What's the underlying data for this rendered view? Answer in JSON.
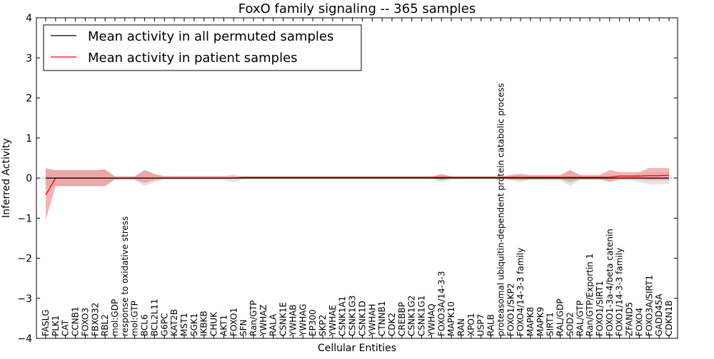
{
  "chart_data": {
    "type": "line",
    "title": "FoxO family signaling -- 365 samples",
    "xlabel": "Cellular Entities",
    "ylabel": "Inferred Activity",
    "ylim": [
      -4,
      4
    ],
    "yticks": [
      -4,
      -3,
      -2,
      -1,
      0,
      1,
      2,
      3,
      4
    ],
    "grid": false,
    "legend_position": "top-left",
    "categories": [
      "FASLG",
      "PLK1",
      "CAT",
      "CCNB1",
      "FOXO3",
      "FBXO32",
      "RBL2",
      "mol:GDP",
      "response to oxidative stress",
      "mol:GTP",
      "BCL6",
      "BCL2L11",
      "G6PC",
      "KAT2B",
      "MST1",
      "SGK1",
      "IKBKB",
      "CHUK",
      "AKT1",
      "FOXO1",
      "SFN",
      "Ran/GTP",
      "YWHAZ",
      "RALA",
      "CSNK1E",
      "YWHAB",
      "YWHAG",
      "EP300",
      "SKP2",
      "YWHAE",
      "CSNK1A1",
      "CSNK1G3",
      "CSNK1D",
      "YWHAH",
      "CTNNB1",
      "CDK2",
      "CREBBP",
      "CSNK1G2",
      "CSNK1G1",
      "YWHAQ",
      "FOXO3A/14-3-3",
      "MAPK10",
      "RAN",
      "XPO1",
      "USP7",
      "RALB",
      "proteasomal ubiquitin-dependent protein catabolic process",
      "FOXO1/SKP2",
      "FOXO4/14-3-3 family",
      "MAPK8",
      "MAPK9",
      "SIRT1",
      "RAL/GDP",
      "SOD2",
      "RAL/GTP",
      "Ran/GTP/Exportin 1",
      "FOXO1/SIRT1",
      "FOXO1-3a-4/beta catenin",
      "FOXO1/14-3-3 family",
      "ZFAND5",
      "FOXO4",
      "FOXO3A/SIRT1",
      "GADD45A",
      "CDKN1B"
    ],
    "series": [
      {
        "name": "Mean activity in all permuted samples",
        "color": "#000000",
        "values": [
          0.0,
          0.0,
          0.0,
          0.0,
          0.0,
          0.0,
          0.0,
          0.0,
          0.0,
          0.0,
          0.0,
          0.0,
          0.0,
          0.0,
          0.0,
          0.0,
          0.0,
          0.0,
          0.0,
          0.0,
          0.0,
          0.0,
          0.0,
          0.0,
          0.0,
          0.0,
          0.0,
          0.0,
          0.0,
          0.0,
          0.0,
          0.0,
          0.0,
          0.0,
          0.0,
          0.0,
          0.0,
          0.0,
          0.0,
          0.0,
          0.0,
          0.0,
          0.0,
          0.0,
          0.0,
          0.0,
          0.0,
          0.0,
          0.0,
          0.0,
          0.0,
          0.0,
          0.0,
          0.0,
          0.0,
          0.0,
          0.0,
          0.0,
          0.0,
          0.0,
          0.0,
          0.0,
          0.0,
          0.0
        ],
        "band_lower": [
          -0.2,
          -0.2,
          -0.2,
          -0.2,
          -0.2,
          -0.2,
          -0.2,
          -0.05,
          -0.05,
          -0.05,
          -0.2,
          -0.1,
          -0.05,
          -0.05,
          -0.05,
          -0.05,
          -0.05,
          -0.05,
          -0.05,
          -0.1,
          -0.02,
          -0.02,
          -0.02,
          -0.02,
          -0.02,
          -0.02,
          -0.02,
          -0.02,
          -0.02,
          -0.02,
          -0.02,
          -0.02,
          -0.02,
          -0.02,
          -0.02,
          -0.02,
          -0.02,
          -0.02,
          -0.02,
          -0.02,
          -0.1,
          -0.05,
          -0.02,
          -0.02,
          -0.02,
          -0.02,
          -0.02,
          -0.05,
          -0.1,
          -0.05,
          -0.05,
          -0.05,
          -0.05,
          -0.2,
          -0.05,
          -0.05,
          -0.05,
          -0.1,
          -0.05,
          -0.05,
          -0.1,
          -0.15,
          -0.15,
          -0.15
        ],
        "band_upper": [
          0.2,
          0.2,
          0.2,
          0.2,
          0.2,
          0.2,
          0.2,
          0.05,
          0.05,
          0.05,
          0.2,
          0.1,
          0.05,
          0.05,
          0.05,
          0.05,
          0.05,
          0.05,
          0.05,
          0.1,
          0.02,
          0.02,
          0.02,
          0.02,
          0.02,
          0.02,
          0.02,
          0.02,
          0.02,
          0.02,
          0.02,
          0.02,
          0.02,
          0.02,
          0.02,
          0.02,
          0.02,
          0.02,
          0.02,
          0.02,
          0.1,
          0.05,
          0.02,
          0.02,
          0.02,
          0.02,
          0.02,
          0.05,
          0.1,
          0.05,
          0.05,
          0.05,
          0.05,
          0.2,
          0.05,
          0.05,
          0.05,
          0.1,
          0.05,
          0.05,
          0.1,
          0.15,
          0.15,
          0.15
        ]
      },
      {
        "name": "Mean activity in patient samples",
        "color": "#ff0000",
        "fill": "#f08080",
        "values": [
          -0.42,
          0.0,
          0.0,
          0.0,
          0.0,
          0.0,
          0.0,
          0.0,
          0.0,
          0.0,
          0.0,
          0.0,
          0.0,
          0.0,
          0.0,
          0.0,
          0.0,
          0.0,
          0.0,
          0.0,
          0.02,
          0.02,
          0.02,
          0.02,
          0.02,
          0.02,
          0.02,
          0.02,
          0.02,
          0.02,
          0.02,
          0.02,
          0.02,
          0.02,
          0.02,
          0.02,
          0.02,
          0.02,
          0.02,
          0.02,
          0.02,
          0.02,
          0.02,
          0.02,
          0.02,
          0.02,
          0.02,
          0.02,
          0.02,
          0.02,
          0.02,
          0.02,
          0.02,
          0.02,
          0.02,
          0.02,
          0.02,
          0.02,
          0.05,
          0.05,
          0.05,
          0.06,
          0.06,
          0.07
        ],
        "band_lower": [
          -1.05,
          -0.2,
          -0.2,
          -0.2,
          -0.2,
          -0.2,
          -0.2,
          -0.03,
          -0.03,
          -0.03,
          -0.12,
          -0.05,
          -0.02,
          -0.02,
          -0.02,
          -0.02,
          -0.02,
          -0.02,
          -0.02,
          -0.02,
          0.0,
          0.0,
          0.0,
          0.0,
          0.0,
          0.0,
          0.0,
          0.0,
          0.0,
          0.0,
          0.0,
          0.0,
          0.0,
          0.0,
          0.0,
          0.0,
          0.0,
          0.0,
          0.0,
          0.0,
          -0.05,
          0.0,
          0.0,
          0.0,
          0.0,
          0.0,
          0.0,
          -0.03,
          -0.05,
          -0.03,
          -0.03,
          -0.03,
          -0.03,
          -0.1,
          -0.03,
          -0.03,
          -0.03,
          -0.08,
          -0.03,
          -0.03,
          -0.03,
          -0.05,
          -0.05,
          -0.05
        ],
        "band_upper": [
          0.25,
          0.2,
          0.2,
          0.2,
          0.2,
          0.2,
          0.22,
          0.04,
          0.04,
          0.04,
          0.2,
          0.1,
          0.05,
          0.05,
          0.05,
          0.05,
          0.05,
          0.05,
          0.05,
          0.05,
          0.04,
          0.04,
          0.04,
          0.04,
          0.04,
          0.04,
          0.04,
          0.04,
          0.04,
          0.04,
          0.04,
          0.04,
          0.04,
          0.04,
          0.04,
          0.04,
          0.04,
          0.04,
          0.04,
          0.04,
          0.1,
          0.04,
          0.04,
          0.04,
          0.04,
          0.04,
          0.04,
          0.08,
          0.1,
          0.08,
          0.08,
          0.08,
          0.08,
          0.2,
          0.08,
          0.08,
          0.08,
          0.2,
          0.15,
          0.15,
          0.15,
          0.25,
          0.25,
          0.25
        ]
      }
    ]
  }
}
